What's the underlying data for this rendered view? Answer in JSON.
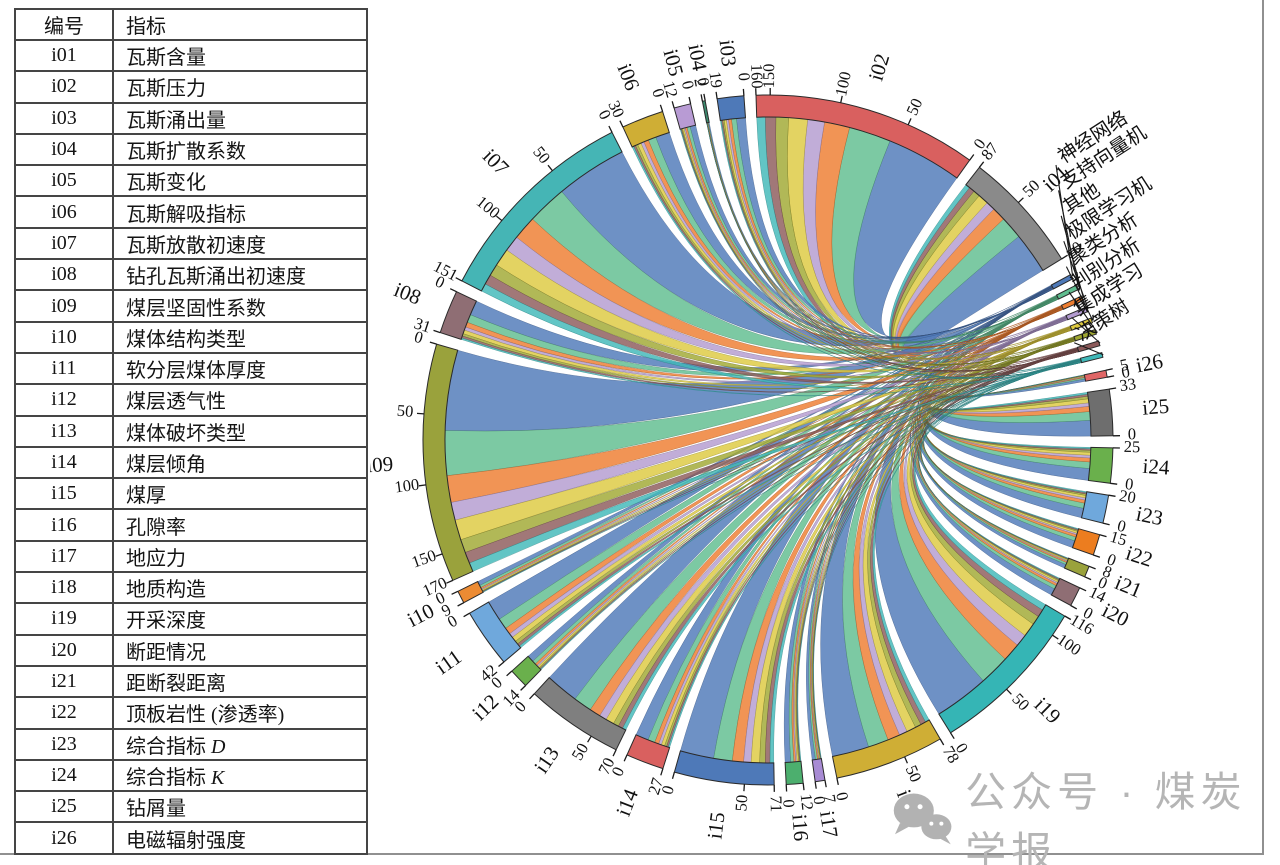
{
  "table": {
    "headers": [
      "编号",
      "指标"
    ],
    "rows": [
      [
        "i01",
        "瓦斯含量"
      ],
      [
        "i02",
        "瓦斯压力"
      ],
      [
        "i03",
        "瓦斯涌出量"
      ],
      [
        "i04",
        "瓦斯扩散系数"
      ],
      [
        "i05",
        "瓦斯变化"
      ],
      [
        "i06",
        "瓦斯解吸指标"
      ],
      [
        "i07",
        "瓦斯放散初速度"
      ],
      [
        "i08",
        "钻孔瓦斯涌出初速度"
      ],
      [
        "i09",
        "煤层坚固性系数"
      ],
      [
        "i10",
        "煤体结构类型"
      ],
      [
        "i11",
        "软分层煤体厚度"
      ],
      [
        "i12",
        "煤层透气性"
      ],
      [
        "i13",
        "煤体破坏类型"
      ],
      [
        "i14",
        "煤层倾角"
      ],
      [
        "i15",
        "煤厚"
      ],
      [
        "i16",
        "孔隙率"
      ],
      [
        "i17",
        "地应力"
      ],
      [
        "i18",
        "地质构造"
      ],
      [
        "i19",
        "开采深度"
      ],
      [
        "i20",
        "断距情况"
      ],
      [
        "i21",
        "距断裂距离"
      ],
      [
        "i22",
        "顶板岩性 (渗透率)"
      ],
      [
        "i23",
        "综合指标 D"
      ],
      [
        "i24",
        "综合指标 K"
      ],
      [
        "i25",
        "钻屑量"
      ],
      [
        "i26",
        "电磁辐射强度"
      ]
    ]
  },
  "chart_data": {
    "type": "chord",
    "title": "",
    "description": "Chord diagram linking gas-outburst prediction indicators (i01–i26, usage counts on arc axes) to machine-learning method categories (thin arcs at upper right).",
    "tick_step": 50,
    "indicators": [
      {
        "id": "i01",
        "label": "瓦斯含量",
        "total": 87,
        "ticks": [
          0,
          50,
          87
        ],
        "color": "#8a8a8a"
      },
      {
        "id": "i02",
        "label": "瓦斯压力",
        "total": 160,
        "ticks": [
          0,
          50,
          100,
          150,
          160
        ],
        "color": "#d9605f"
      },
      {
        "id": "i03",
        "label": "瓦斯涌出量",
        "total": 19,
        "ticks": [
          0,
          19
        ],
        "color": "#4e79b8"
      },
      {
        "id": "i04",
        "label": "瓦斯扩散系数",
        "total": 2,
        "ticks": [
          0,
          2
        ],
        "color": "#3b8a6e"
      },
      {
        "id": "i05",
        "label": "瓦斯变化",
        "total": 12,
        "ticks": [
          0,
          12
        ],
        "color": "#b89bd4"
      },
      {
        "id": "i06",
        "label": "瓦斯解吸指标",
        "total": 30,
        "ticks": [
          0,
          30
        ],
        "color": "#cfae35"
      },
      {
        "id": "i07",
        "label": "瓦斯放散初速度",
        "total": 151,
        "ticks": [
          0,
          50,
          100,
          151
        ],
        "color": "#45b5b5"
      },
      {
        "id": "i08",
        "label": "钻孔瓦斯涌出初速度",
        "total": 31,
        "ticks": [
          0,
          31
        ],
        "color": "#8f6e74"
      },
      {
        "id": "i09",
        "label": "煤层坚固性系数",
        "total": 170,
        "ticks": [
          0,
          50,
          100,
          150,
          170
        ],
        "color": "#9aa23c"
      },
      {
        "id": "i10",
        "label": "煤体结构类型",
        "total": 9,
        "ticks": [
          0,
          9
        ],
        "color": "#ec8b33"
      },
      {
        "id": "i11",
        "label": "软分层煤体厚度",
        "total": 42,
        "ticks": [
          0,
          42
        ],
        "color": "#6fa8dc"
      },
      {
        "id": "i12",
        "label": "煤层透气性",
        "total": 14,
        "ticks": [
          0,
          14
        ],
        "color": "#6ab04c"
      },
      {
        "id": "i13",
        "label": "煤体破坏类型",
        "total": 70,
        "ticks": [
          0,
          50,
          70
        ],
        "color": "#7f7f7f"
      },
      {
        "id": "i14",
        "label": "煤层倾角",
        "total": 27,
        "ticks": [
          0,
          27
        ],
        "color": "#d9605f"
      },
      {
        "id": "i15",
        "label": "煤厚",
        "total": 71,
        "ticks": [
          0,
          50,
          71
        ],
        "color": "#4e79b8"
      },
      {
        "id": "i16",
        "label": "孔隙率",
        "total": 12,
        "ticks": [
          0,
          12
        ],
        "color": "#4caf6e"
      },
      {
        "id": "i17",
        "label": "地应力",
        "total": 7,
        "ticks": [
          0,
          7
        ],
        "color": "#a88bd4"
      },
      {
        "id": "i18",
        "label": "地质构造",
        "total": 78,
        "ticks": [
          0,
          50,
          78
        ],
        "color": "#cfae35"
      },
      {
        "id": "i19",
        "label": "开采深度",
        "total": 116,
        "ticks": [
          0,
          50,
          100,
          116
        ],
        "color": "#35b5b5"
      },
      {
        "id": "i20",
        "label": "断距情况",
        "total": 14,
        "ticks": [
          0,
          14
        ],
        "color": "#8f6e74"
      },
      {
        "id": "i21",
        "label": "距断裂距离",
        "total": 8,
        "ticks": [
          0,
          8
        ],
        "color": "#9aa23c"
      },
      {
        "id": "i22",
        "label": "顶板岩性 (渗透率)",
        "total": 15,
        "ticks": [
          0,
          15
        ],
        "color": "#ec7d1f"
      },
      {
        "id": "i23",
        "label": "综合指标 D",
        "total": 20,
        "ticks": [
          0,
          20
        ],
        "color": "#6fa8dc"
      },
      {
        "id": "i24",
        "label": "综合指标 K",
        "total": 25,
        "ticks": [
          0,
          25
        ],
        "color": "#6ab04c"
      },
      {
        "id": "i25",
        "label": "钻屑量",
        "total": 33,
        "ticks": [
          0,
          33
        ],
        "color": "#6e6e6e"
      },
      {
        "id": "i26",
        "label": "电磁辐射强度",
        "total": 5,
        "ticks": [
          0,
          5
        ],
        "color": "#e06666"
      }
    ],
    "methods": [
      {
        "label": "神经网络",
        "color": "#4e79b8",
        "share": 0.36
      },
      {
        "label": "支持向量机",
        "color": "#5fbd8f",
        "share": 0.2
      },
      {
        "label": "其他",
        "color": "#ee7d2f",
        "share": 0.12
      },
      {
        "label": "极限学习机",
        "color": "#b39bd0",
        "share": 0.08
      },
      {
        "label": "聚类分析",
        "color": "#ddc93f",
        "share": 0.09
      },
      {
        "label": "判别分析",
        "color": "#a0a832",
        "share": 0.06
      },
      {
        "label": "集成学习",
        "color": "#8c5a5a",
        "share": 0.05
      },
      {
        "label": "决策树",
        "color": "#3fb8b8",
        "share": 0.04
      }
    ],
    "clockwise_order": [
      "i02",
      "i01",
      "@methods",
      "i26",
      "i25",
      "i24",
      "i23",
      "i22",
      "i21",
      "i20",
      "i19",
      "i18",
      "i17",
      "i16",
      "i15",
      "i14",
      "i13",
      "i12",
      "i11",
      "i10",
      "i09",
      "i08",
      "i07",
      "i06",
      "i05",
      "i04",
      "i03"
    ]
  },
  "watermark": {
    "icon": "wechat-icon",
    "text": "公众号 · 煤炭学报",
    "color": "#b5b5b5"
  }
}
